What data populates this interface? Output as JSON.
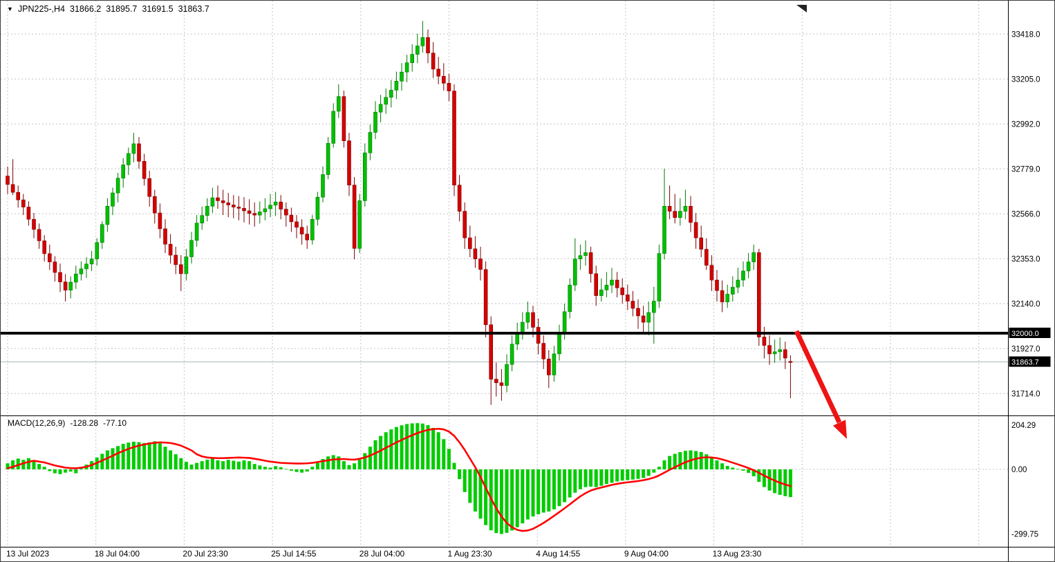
{
  "header": {
    "symbol": "JPN225-,H4",
    "open": "31866.2",
    "high": "31895.7",
    "low": "31691.5",
    "close": "31863.7"
  },
  "price_axis": {
    "labels": [
      "33418.0",
      "33205.0",
      "32992.0",
      "32779.0",
      "32566.0",
      "32353.0",
      "32140.0",
      "31927.0",
      "31714.0"
    ],
    "level_badge": "32000.0",
    "bid_badge": "31863.7"
  },
  "time_axis": {
    "labels": [
      "13 Jul 2023",
      "18 Jul 04:00",
      "20 Jul 23:30",
      "25 Jul 14:55",
      "28 Jul 04:00",
      "1 Aug 23:30",
      "4 Aug 14:55",
      "9 Aug 04:00",
      "13 Aug 23:30"
    ]
  },
  "macd_panel": {
    "label": "MACD(12,26,9)",
    "value_main": "-128.28",
    "value_signal": "-77.10",
    "axis_labels": [
      "204.29",
      "0.00",
      "-299.75"
    ]
  },
  "colors": {
    "up": "#00c000",
    "up_border": "#007800",
    "down": "#d40000",
    "down_border": "#7c0000",
    "macd_hist": "#00cc00",
    "macd_signal": "#ff0000",
    "grid": "#c4c4c4",
    "hline": "#000000",
    "bid_line": "#a9b6ba",
    "arrow": "#ee1414",
    "badge_bg": "#000000",
    "badge_fg": "#ffffff",
    "background": "#ffffff"
  },
  "chart_data": {
    "type": "candlestick+macd",
    "title": "JPN225-,H4",
    "symbol": "JPN225-",
    "timeframe": "H4",
    "last_quote": {
      "open": 31866.2,
      "high": 31895.7,
      "low": 31691.5,
      "close": 31863.7
    },
    "price_gridlines": [
      33418.0,
      33205.0,
      32992.0,
      32779.0,
      32566.0,
      32353.0,
      32140.0,
      31927.0,
      31714.0
    ],
    "hline": 32000.0,
    "current_price": 31863.7,
    "ylim": [
      31650,
      33500
    ],
    "x_labels": [
      "13 Jul 2023",
      "18 Jul 04:00",
      "20 Jul 23:30",
      "25 Jul 14:55",
      "28 Jul 04:00",
      "1 Aug 23:30",
      "4 Aug 14:55",
      "9 Aug 04:00",
      "13 Aug 23:30"
    ],
    "annotation": {
      "type": "arrow-down-right",
      "meaning": "projected decline below 32000 support"
    },
    "candles": [
      [
        32745,
        32790,
        32660,
        32705
      ],
      [
        32705,
        32825,
        32655,
        32668
      ],
      [
        32668,
        32700,
        32595,
        32632
      ],
      [
        32632,
        32660,
        32560,
        32598
      ],
      [
        32598,
        32625,
        32510,
        32540
      ],
      [
        32540,
        32570,
        32450,
        32492
      ],
      [
        32492,
        32520,
        32400,
        32438
      ],
      [
        32438,
        32465,
        32340,
        32377
      ],
      [
        32377,
        32420,
        32300,
        32338
      ],
      [
        32338,
        32365,
        32245,
        32288
      ],
      [
        32288,
        32330,
        32195,
        32243
      ],
      [
        32243,
        32280,
        32150,
        32204
      ],
      [
        32204,
        32270,
        32165,
        32242
      ],
      [
        32242,
        32320,
        32210,
        32281
      ],
      [
        32281,
        32340,
        32250,
        32305
      ],
      [
        32305,
        32360,
        32262,
        32328
      ],
      [
        32328,
        32390,
        32295,
        32352
      ],
      [
        32352,
        32450,
        32320,
        32430
      ],
      [
        32430,
        32530,
        32400,
        32515
      ],
      [
        32515,
        32640,
        32480,
        32602
      ],
      [
        32602,
        32690,
        32560,
        32665
      ],
      [
        32665,
        32760,
        32620,
        32735
      ],
      [
        32735,
        32830,
        32690,
        32798
      ],
      [
        32798,
        32880,
        32750,
        32852
      ],
      [
        32852,
        32950,
        32810,
        32898
      ],
      [
        32898,
        32930,
        32780,
        32815
      ],
      [
        32815,
        32850,
        32700,
        32733
      ],
      [
        32733,
        32770,
        32600,
        32648
      ],
      [
        32648,
        32680,
        32520,
        32570
      ],
      [
        32570,
        32615,
        32450,
        32495
      ],
      [
        32495,
        32540,
        32380,
        32422
      ],
      [
        32422,
        32470,
        32330,
        32370
      ],
      [
        32370,
        32410,
        32280,
        32325
      ],
      [
        32325,
        32370,
        32200,
        32282
      ],
      [
        32282,
        32400,
        32250,
        32362
      ],
      [
        32362,
        32480,
        32330,
        32440
      ],
      [
        32440,
        32560,
        32410,
        32522
      ],
      [
        32522,
        32600,
        32490,
        32558
      ],
      [
        32558,
        32640,
        32530,
        32602
      ],
      [
        32602,
        32690,
        32570,
        32642
      ],
      [
        32642,
        32700,
        32590,
        32628
      ],
      [
        32628,
        32680,
        32560,
        32618
      ],
      [
        32618,
        32665,
        32550,
        32608
      ],
      [
        32608,
        32655,
        32545,
        32598
      ],
      [
        32598,
        32650,
        32535,
        32592
      ],
      [
        32592,
        32645,
        32525,
        32580
      ],
      [
        32580,
        32635,
        32515,
        32568
      ],
      [
        32568,
        32620,
        32505,
        32560
      ],
      [
        32560,
        32625,
        32520,
        32575
      ],
      [
        32575,
        32640,
        32535,
        32590
      ],
      [
        32590,
        32660,
        32550,
        32607
      ],
      [
        32607,
        32670,
        32555,
        32622
      ],
      [
        32622,
        32655,
        32540,
        32588
      ],
      [
        32588,
        32620,
        32505,
        32560
      ],
      [
        32560,
        32595,
        32480,
        32528
      ],
      [
        32528,
        32560,
        32450,
        32502
      ],
      [
        32502,
        32540,
        32420,
        32470
      ],
      [
        32470,
        32510,
        32400,
        32442
      ],
      [
        32442,
        32560,
        32420,
        32540
      ],
      [
        32540,
        32670,
        32510,
        32645
      ],
      [
        32645,
        32790,
        32620,
        32752
      ],
      [
        32752,
        32930,
        32730,
        32900
      ],
      [
        32900,
        33090,
        32880,
        33052
      ],
      [
        33052,
        33180,
        33020,
        33122
      ],
      [
        33122,
        33150,
        32880,
        32912
      ],
      [
        32912,
        32950,
        32650,
        32702
      ],
      [
        32702,
        32740,
        32350,
        32402
      ],
      [
        32402,
        32660,
        32380,
        32628
      ],
      [
        32628,
        32900,
        32600,
        32855
      ],
      [
        32855,
        32990,
        32820,
        32952
      ],
      [
        32952,
        33100,
        32920,
        33048
      ],
      [
        33048,
        33130,
        33000,
        33085
      ],
      [
        33085,
        33160,
        33040,
        33118
      ],
      [
        33118,
        33200,
        33070,
        33152
      ],
      [
        33152,
        33240,
        33110,
        33195
      ],
      [
        33195,
        33280,
        33150,
        33238
      ],
      [
        33238,
        33320,
        33190,
        33282
      ],
      [
        33282,
        33370,
        33240,
        33322
      ],
      [
        33322,
        33420,
        33280,
        33362
      ],
      [
        33362,
        33480,
        33330,
        33402
      ],
      [
        33402,
        33440,
        33280,
        33328
      ],
      [
        33328,
        33380,
        33210,
        33252
      ],
      [
        33252,
        33310,
        33180,
        33218
      ],
      [
        33218,
        33280,
        33150,
        33185
      ],
      [
        33185,
        33230,
        33100,
        33148
      ],
      [
        33148,
        33180,
        32650,
        32702
      ],
      [
        32702,
        32750,
        32530,
        32578
      ],
      [
        32578,
        32620,
        32400,
        32452
      ],
      [
        32452,
        32510,
        32360,
        32400
      ],
      [
        32400,
        32460,
        32310,
        32352
      ],
      [
        32352,
        32410,
        32250,
        32302
      ],
      [
        32302,
        32340,
        31980,
        32040
      ],
      [
        32040,
        32080,
        31660,
        31782
      ],
      [
        31782,
        31860,
        31700,
        31765
      ],
      [
        31765,
        31830,
        31680,
        31752
      ],
      [
        31752,
        31900,
        31720,
        31852
      ],
      [
        31852,
        31990,
        31820,
        31948
      ],
      [
        31948,
        32050,
        31920,
        32002
      ],
      [
        32002,
        32100,
        31970,
        32052
      ],
      [
        32052,
        32150,
        32020,
        32098
      ],
      [
        32098,
        32130,
        31980,
        32028
      ],
      [
        32028,
        32070,
        31900,
        31952
      ],
      [
        31952,
        31990,
        31830,
        31878
      ],
      [
        31878,
        31920,
        31740,
        31802
      ],
      [
        31802,
        31940,
        31770,
        31902
      ],
      [
        31902,
        32040,
        31870,
        32000
      ],
      [
        32000,
        32140,
        31970,
        32102
      ],
      [
        32102,
        32260,
        32070,
        32228
      ],
      [
        32228,
        32450,
        32200,
        32352
      ],
      [
        32352,
        32420,
        32300,
        32368
      ],
      [
        32368,
        32440,
        32320,
        32382
      ],
      [
        32382,
        32410,
        32240,
        32282
      ],
      [
        32282,
        32320,
        32130,
        32178
      ],
      [
        32178,
        32260,
        32150,
        32205
      ],
      [
        32205,
        32290,
        32170,
        32228
      ],
      [
        32228,
        32310,
        32190,
        32252
      ],
      [
        32252,
        32290,
        32170,
        32215
      ],
      [
        32215,
        32260,
        32140,
        32182
      ],
      [
        32182,
        32230,
        32110,
        32152
      ],
      [
        32152,
        32200,
        32080,
        32118
      ],
      [
        32118,
        32160,
        32020,
        32082
      ],
      [
        32082,
        32130,
        32000,
        32052
      ],
      [
        32052,
        32150,
        31990,
        32098
      ],
      [
        32098,
        32220,
        31950,
        32152
      ],
      [
        32152,
        32420,
        32120,
        32378
      ],
      [
        32378,
        32780,
        32350,
        32602
      ],
      [
        32602,
        32700,
        32540,
        32578
      ],
      [
        32578,
        32660,
        32520,
        32548
      ],
      [
        32548,
        32640,
        32510,
        32578
      ],
      [
        32578,
        32680,
        32540,
        32602
      ],
      [
        32602,
        32650,
        32480,
        32525
      ],
      [
        32525,
        32570,
        32400,
        32452
      ],
      [
        32452,
        32510,
        32360,
        32398
      ],
      [
        32398,
        32450,
        32300,
        32322
      ],
      [
        32322,
        32370,
        32200,
        32252
      ],
      [
        32252,
        32300,
        32150,
        32202
      ],
      [
        32202,
        32250,
        32100,
        32148
      ],
      [
        32148,
        32230,
        32120,
        32185
      ],
      [
        32185,
        32270,
        32150,
        32218
      ],
      [
        32218,
        32310,
        32190,
        32252
      ],
      [
        32252,
        32340,
        32220,
        32295
      ],
      [
        32295,
        32380,
        32260,
        32338
      ],
      [
        32338,
        32420,
        32300,
        32382
      ],
      [
        32382,
        32400,
        31940,
        31982
      ],
      [
        31982,
        32030,
        31880,
        31942
      ],
      [
        31942,
        31990,
        31850,
        31902
      ],
      [
        31902,
        31970,
        31860,
        31912
      ],
      [
        31912,
        31980,
        31870,
        31922
      ],
      [
        31922,
        31960,
        31830,
        31882
      ],
      [
        31866.2,
        31895.7,
        31691.5,
        31863.7
      ]
    ],
    "macd": {
      "params": "12,26,9",
      "last_main": -128.28,
      "last_signal": -77.1,
      "scale_max": 204.29,
      "scale_min": -299.75,
      "histogram": [
        28,
        42,
        50,
        44,
        52,
        38,
        25,
        12,
        -8,
        -18,
        -22,
        -15,
        -10,
        -18,
        5,
        22,
        38,
        55,
        72,
        88,
        98,
        108,
        118,
        124,
        128,
        126,
        122,
        125,
        130,
        120,
        105,
        88,
        70,
        52,
        35,
        22,
        30,
        38,
        45,
        50,
        42,
        38,
        44,
        40,
        36,
        42,
        38,
        25,
        18,
        12,
        8,
        15,
        10,
        2,
        -6,
        -12,
        -15,
        -10,
        12,
        30,
        48,
        60,
        66,
        60,
        38,
        20,
        28,
        45,
        75,
        105,
        135,
        155,
        172,
        185,
        196,
        204,
        210,
        213,
        214,
        212,
        205,
        192,
        172,
        140,
        95,
        30,
        -45,
        -105,
        -155,
        -195,
        -228,
        -258,
        -282,
        -295,
        -299,
        -294,
        -283,
        -268,
        -250,
        -232,
        -218,
        -208,
        -200,
        -195,
        -185,
        -170,
        -152,
        -130,
        -108,
        -92,
        -82,
        -80,
        -82,
        -76,
        -68,
        -62,
        -56,
        -52,
        -50,
        -47,
        -44,
        -40,
        -30,
        -15,
        12,
        42,
        62,
        72,
        80,
        86,
        88,
        85,
        80,
        70,
        56,
        42,
        28,
        16,
        8,
        2,
        -6,
        -16,
        -32,
        -58,
        -82,
        -98,
        -110,
        -118,
        -124,
        -128.28
      ],
      "signal": [
        5,
        12,
        20,
        28,
        35,
        40,
        36,
        32,
        25,
        18,
        13,
        8,
        6,
        5,
        8,
        12,
        20,
        30,
        41,
        52,
        63,
        75,
        85,
        95,
        103,
        110,
        115,
        120,
        123,
        125,
        124,
        122,
        117,
        110,
        99,
        88,
        70,
        60,
        55,
        53,
        52,
        52,
        53,
        54,
        55,
        54,
        53,
        49,
        45,
        40,
        36,
        33,
        30,
        29,
        28,
        27,
        27,
        28,
        30,
        34,
        38,
        42,
        46,
        47,
        48,
        46,
        45,
        49,
        55,
        64,
        75,
        87,
        100,
        112,
        125,
        136,
        148,
        158,
        168,
        176,
        183,
        186,
        188,
        185,
        175,
        155,
        125,
        90,
        50,
        10,
        -35,
        -85,
        -135,
        -180,
        -218,
        -248,
        -268,
        -280,
        -285,
        -283,
        -275,
        -262,
        -248,
        -232,
        -215,
        -198,
        -180,
        -162,
        -143,
        -125,
        -110,
        -98,
        -90,
        -84,
        -78,
        -72,
        -67,
        -63,
        -60,
        -57,
        -54,
        -50,
        -45,
        -38,
        -28,
        -15,
        -2,
        10,
        22,
        33,
        42,
        49,
        54,
        56,
        55,
        52,
        46,
        39,
        31,
        23,
        15,
        6,
        -4,
        -16,
        -29,
        -41,
        -52,
        -62,
        -70,
        -77.1
      ]
    }
  }
}
